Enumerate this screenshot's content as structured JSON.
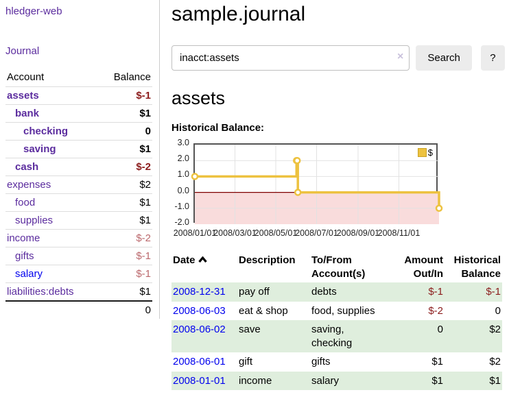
{
  "app": {
    "brand": "hledger-web",
    "nav_journal": "Journal"
  },
  "sidebar": {
    "columns": {
      "account": "Account",
      "balance": "Balance"
    },
    "accounts": [
      {
        "name": "assets",
        "indent": 1,
        "bold": true,
        "link_color": "purple",
        "balance": "$-1",
        "balance_class": "neg-strong"
      },
      {
        "name": "bank",
        "indent": 2,
        "bold": true,
        "link_color": "purple",
        "balance": "$1",
        "balance_class": ""
      },
      {
        "name": "checking",
        "indent": 3,
        "bold": true,
        "link_color": "purple",
        "balance": "0",
        "balance_class": ""
      },
      {
        "name": "saving",
        "indent": 3,
        "bold": true,
        "link_color": "purple",
        "balance": "$1",
        "balance_class": ""
      },
      {
        "name": "cash",
        "indent": 2,
        "bold": true,
        "link_color": "purple",
        "balance": "$-2",
        "balance_class": "neg-strong"
      },
      {
        "name": "expenses",
        "indent": 1,
        "bold": false,
        "link_color": "purple",
        "balance": "$2",
        "balance_class": ""
      },
      {
        "name": "food",
        "indent": 2,
        "bold": false,
        "link_color": "purple",
        "balance": "$1",
        "balance_class": ""
      },
      {
        "name": "supplies",
        "indent": 2,
        "bold": false,
        "link_color": "purple",
        "balance": "$1",
        "balance_class": ""
      },
      {
        "name": "income",
        "indent": 1,
        "bold": false,
        "link_color": "purple",
        "balance": "$-2",
        "balance_class": "neg-soft"
      },
      {
        "name": "gifts",
        "indent": 2,
        "bold": false,
        "link_color": "purple",
        "balance": "$-1",
        "balance_class": "neg-soft"
      },
      {
        "name": "salary",
        "indent": 2,
        "bold": false,
        "link_color": "blue",
        "balance": "$-1",
        "balance_class": "neg-soft"
      },
      {
        "name": "liabilities:debts",
        "indent": 1,
        "bold": false,
        "link_color": "purple",
        "balance": "$1",
        "balance_class": ""
      }
    ],
    "total": "0"
  },
  "header": {
    "title": "sample.journal"
  },
  "search": {
    "value": "inacct:assets",
    "clear_icon": "×",
    "search_button": "Search",
    "help_button": "?"
  },
  "section": {
    "account_heading": "assets",
    "chart_title": "Historical Balance:"
  },
  "chart_data": {
    "type": "line",
    "step": true,
    "title": "Historical Balance:",
    "xlim": [
      "2008-01-01",
      "2008-12-31"
    ],
    "ylim": [
      -2,
      3
    ],
    "yticks": [
      "3.0",
      "2.0",
      "1.0",
      "0.0",
      "-1.0",
      "-2.0"
    ],
    "ytick_values": [
      3,
      2,
      1,
      0,
      -1,
      -2
    ],
    "xticks": [
      "2008/01/01",
      "2008/03/01",
      "2008/05/01",
      "2008/07/01",
      "2008/09/01",
      "2008/11/01"
    ],
    "grid": true,
    "legend_position": "top-right",
    "series": [
      {
        "name": "$",
        "color": "#EDC240",
        "points": [
          [
            "2008-01-01",
            1
          ],
          [
            "2008-06-01",
            2
          ],
          [
            "2008-06-02",
            2
          ],
          [
            "2008-06-03",
            0
          ],
          [
            "2008-12-31",
            -1
          ]
        ]
      }
    ],
    "zero_line_color": "#7d0000",
    "negative_region_fill": "#f9dcdc",
    "grid_color": "#e2e2e2",
    "border_color": "#545454"
  },
  "register": {
    "headers": {
      "date": "Date",
      "description": "Description",
      "accounts": "To/From Account(s)",
      "amount": "Amount Out/In",
      "balance": "Historical Balance"
    },
    "rows": [
      {
        "date": "2008-12-31",
        "description": "pay off",
        "accounts": "debts",
        "amount": "$-1",
        "balance": "$-1"
      },
      {
        "date": "2008-06-03",
        "description": "eat & shop",
        "accounts": "food, supplies",
        "amount": "$-2",
        "balance": "0"
      },
      {
        "date": "2008-06-02",
        "description": "save",
        "accounts": "saving, checking",
        "amount": "0",
        "balance": "$2"
      },
      {
        "date": "2008-06-01",
        "description": "gift",
        "accounts": "gifts",
        "amount": "$1",
        "balance": "$2"
      },
      {
        "date": "2008-01-01",
        "description": "income",
        "accounts": "salary",
        "amount": "$1",
        "balance": "$1"
      }
    ]
  },
  "colors": {
    "link_purple": "#5b2c9e",
    "link_blue": "#0000ee",
    "negative_strong": "#8b1c1c",
    "negative_soft": "#bb686c",
    "row_stripe_green": "#dfeedd",
    "chart_gold": "#EDC240"
  }
}
